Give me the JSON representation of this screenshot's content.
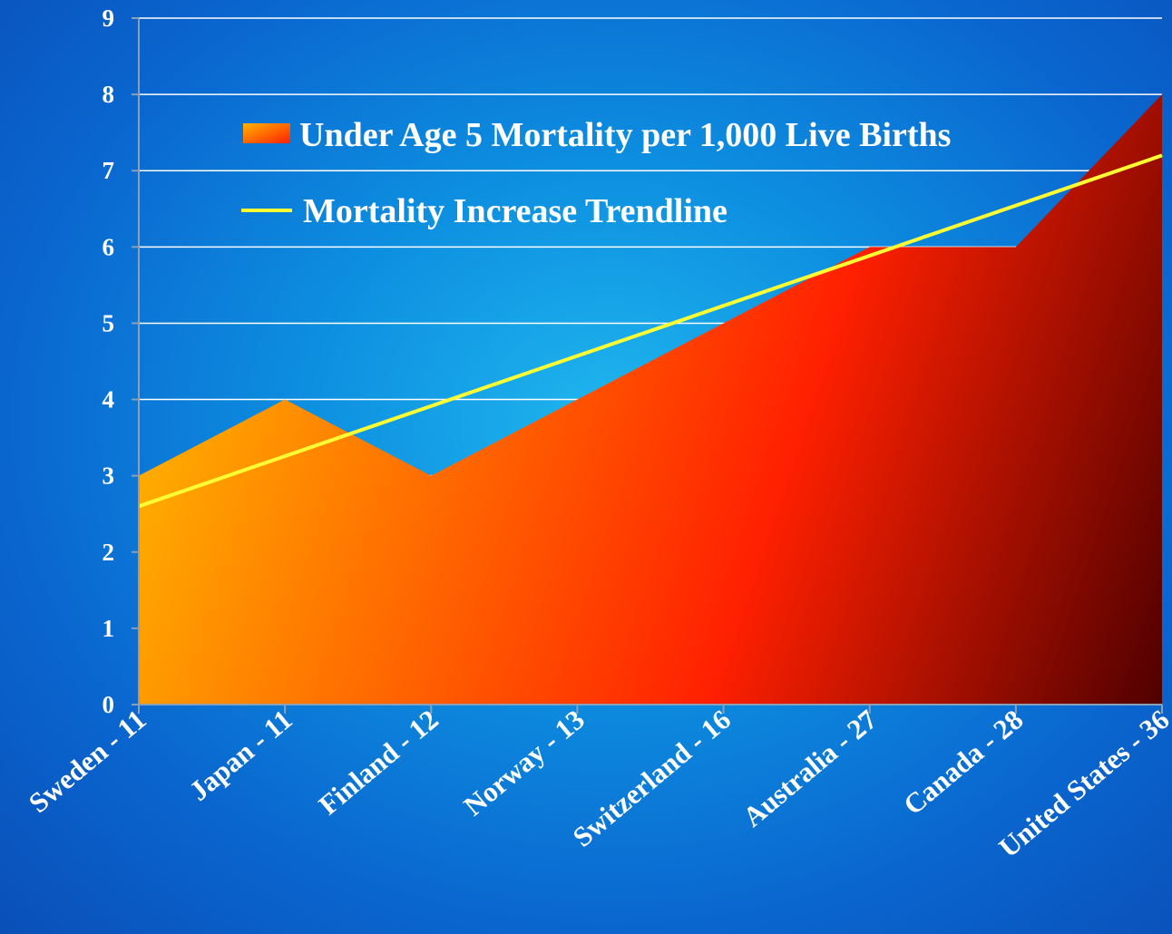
{
  "chart_data": {
    "type": "area",
    "categories": [
      "Sweden - 11",
      "Japan - 11",
      "Finland - 12",
      "Norway - 13",
      "Switzerland - 16",
      "Australia - 27",
      "Canada - 28",
      "United States - 36"
    ],
    "series": [
      {
        "name": "Under Age 5 Mortality per 1,000 Live Births",
        "values": [
          3,
          4,
          3,
          4,
          5,
          6,
          6,
          8
        ]
      }
    ],
    "trendline": {
      "name": "Mortality Increase Trendline",
      "start": 2.6,
      "end": 7.2
    },
    "yticks": [
      0,
      1,
      2,
      3,
      4,
      5,
      6,
      7,
      8,
      9
    ],
    "ylim": [
      0,
      9
    ],
    "grid": true,
    "legend_position": "top-left",
    "colors": {
      "area_light": "#ffb400",
      "area_mid": "#ff2000",
      "area_dark": "#500000",
      "trendline": "#ffff33",
      "grid": "#ffffff"
    }
  }
}
